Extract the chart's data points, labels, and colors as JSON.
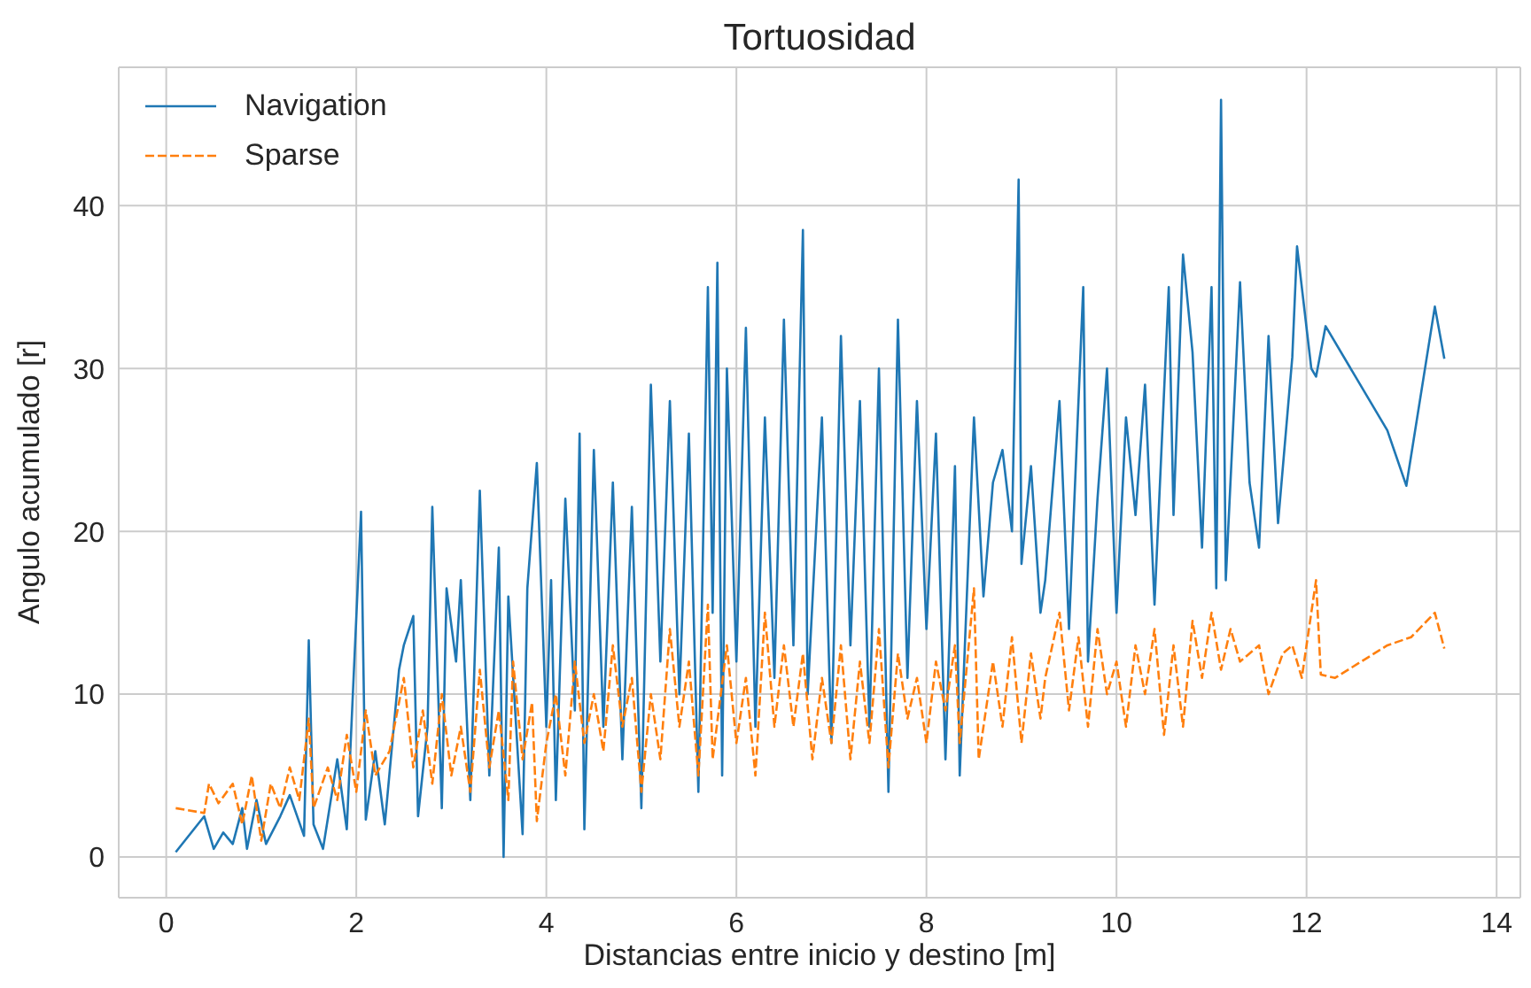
{
  "chart_data": {
    "type": "line",
    "title": "Tortuosidad",
    "xlabel": "Distancias entre inicio y destino [m]",
    "ylabel": "Angulo acumulado [r]",
    "xlim": [
      -0.5,
      14.25
    ],
    "ylim": [
      -2.5,
      48.5
    ],
    "xticks": [
      0,
      2,
      4,
      6,
      8,
      10,
      12,
      14
    ],
    "yticks": [
      0,
      10,
      20,
      30,
      40
    ],
    "grid": true,
    "legend": "top left",
    "marker": "none",
    "series": [
      {
        "name": "Navigation",
        "color": "#1f77b4",
        "line_style": "solid",
        "x": [
          0.1,
          0.4,
          0.5,
          0.6,
          0.7,
          0.8,
          0.85,
          0.95,
          1.05,
          1.2,
          1.3,
          1.45,
          1.5,
          1.55,
          1.65,
          1.8,
          1.9,
          2.05,
          2.1,
          2.2,
          2.3,
          2.45,
          2.5,
          2.6,
          2.65,
          2.75,
          2.8,
          2.9,
          2.95,
          3.05,
          3.1,
          3.2,
          3.3,
          3.4,
          3.5,
          3.55,
          3.6,
          3.75,
          3.8,
          3.9,
          4.0,
          4.05,
          4.1,
          4.2,
          4.3,
          4.35,
          4.4,
          4.5,
          4.6,
          4.7,
          4.8,
          4.9,
          5.0,
          5.1,
          5.2,
          5.3,
          5.4,
          5.5,
          5.6,
          5.7,
          5.75,
          5.8,
          5.85,
          5.9,
          6.0,
          6.1,
          6.2,
          6.3,
          6.4,
          6.5,
          6.6,
          6.7,
          6.75,
          6.9,
          7.0,
          7.1,
          7.2,
          7.3,
          7.4,
          7.5,
          7.6,
          7.7,
          7.8,
          7.9,
          8.0,
          8.1,
          8.2,
          8.3,
          8.35,
          8.5,
          8.6,
          8.7,
          8.8,
          8.9,
          8.97,
          9.0,
          9.1,
          9.2,
          9.25,
          9.4,
          9.5,
          9.65,
          9.7,
          9.8,
          9.9,
          10.0,
          10.1,
          10.2,
          10.3,
          10.4,
          10.55,
          10.6,
          10.7,
          10.8,
          10.9,
          11.0,
          11.05,
          11.1,
          11.15,
          11.3,
          11.4,
          11.5,
          11.6,
          11.7,
          11.85,
          11.9,
          12.05,
          12.1,
          12.2,
          12.85,
          13.05,
          13.35,
          13.45
        ],
        "values": [
          0.3,
          2.5,
          0.5,
          1.5,
          0.8,
          3,
          0.5,
          3.5,
          0.8,
          2.5,
          3.8,
          1.3,
          13.3,
          2,
          0.5,
          6,
          1.7,
          21.2,
          2.3,
          6.5,
          2,
          11.5,
          13,
          14.8,
          2.5,
          8,
          21.5,
          3,
          16.5,
          12,
          17,
          3.5,
          22.5,
          5,
          19,
          0,
          16,
          1.4,
          16.5,
          24.2,
          8,
          17,
          3.5,
          22,
          9,
          26,
          1.7,
          25,
          8,
          23,
          6,
          21.5,
          3,
          29,
          12,
          28,
          10,
          26,
          4,
          35,
          15,
          36.5,
          5,
          30,
          12,
          32.5,
          8,
          27,
          11,
          33,
          13,
          38.5,
          10,
          27,
          7,
          32,
          13,
          28,
          8,
          30,
          4,
          33,
          11,
          28,
          14,
          26,
          6,
          24,
          5,
          27,
          16,
          23,
          25,
          20,
          41.6,
          18,
          24,
          15,
          17,
          28,
          14,
          35,
          12,
          22,
          30,
          15,
          27,
          21,
          29,
          15.5,
          35,
          21,
          37,
          31,
          19,
          35,
          16.5,
          46.5,
          17,
          35.3,
          23,
          19,
          32,
          20.5,
          30.7,
          37.5,
          30,
          29.5,
          32.6,
          26.2,
          22.8,
          33.8,
          30.6
        ]
      },
      {
        "name": "Sparse",
        "color": "#ff7f0e",
        "line_style": "dashed",
        "x": [
          0.1,
          0.4,
          0.45,
          0.55,
          0.7,
          0.8,
          0.9,
          1.0,
          1.1,
          1.2,
          1.3,
          1.4,
          1.5,
          1.55,
          1.7,
          1.8,
          1.9,
          2.0,
          2.1,
          2.2,
          2.35,
          2.5,
          2.6,
          2.7,
          2.8,
          2.9,
          3.0,
          3.1,
          3.2,
          3.3,
          3.4,
          3.5,
          3.6,
          3.65,
          3.75,
          3.85,
          3.9,
          4.0,
          4.1,
          4.2,
          4.3,
          4.4,
          4.5,
          4.6,
          4.7,
          4.8,
          4.9,
          5.0,
          5.1,
          5.2,
          5.3,
          5.4,
          5.5,
          5.6,
          5.7,
          5.75,
          5.9,
          6.0,
          6.1,
          6.2,
          6.3,
          6.4,
          6.5,
          6.6,
          6.7,
          6.8,
          6.9,
          7.0,
          7.1,
          7.2,
          7.3,
          7.4,
          7.5,
          7.6,
          7.7,
          7.8,
          7.9,
          8.0,
          8.1,
          8.2,
          8.3,
          8.35,
          8.5,
          8.55,
          8.7,
          8.8,
          8.9,
          9.0,
          9.1,
          9.2,
          9.25,
          9.4,
          9.5,
          9.6,
          9.7,
          9.8,
          9.9,
          10.0,
          10.1,
          10.2,
          10.3,
          10.4,
          10.5,
          10.6,
          10.7,
          10.8,
          10.9,
          11.0,
          11.1,
          11.2,
          11.3,
          11.5,
          11.6,
          11.75,
          11.85,
          11.95,
          12.1,
          12.15,
          12.3,
          12.85,
          13.1,
          13.35,
          13.45
        ],
        "values": [
          3,
          2.7,
          4.5,
          3.3,
          4.5,
          2,
          5,
          1,
          4.5,
          3,
          5.5,
          3.5,
          8.5,
          3,
          5.5,
          3.5,
          7.5,
          4,
          9,
          5,
          6.5,
          11,
          5.5,
          9,
          4.5,
          10,
          5,
          8,
          4,
          11.5,
          5.5,
          9,
          3.5,
          12,
          6,
          9.5,
          2.2,
          7,
          10,
          5,
          12,
          7,
          10,
          6.5,
          13,
          8,
          11,
          4,
          10,
          6,
          14,
          8,
          12,
          5,
          15.5,
          6,
          13,
          7,
          11,
          5,
          15,
          8,
          13,
          8,
          12.5,
          6,
          11,
          7,
          13,
          6,
          12,
          7,
          14,
          5.5,
          12.5,
          8.5,
          11,
          7,
          12,
          9,
          13,
          7,
          16.5,
          6,
          12,
          8,
          13.5,
          7,
          12.5,
          8.5,
          11,
          15,
          9,
          13.5,
          8,
          14,
          10,
          12,
          8,
          13,
          10,
          14,
          7.5,
          13,
          8,
          14.5,
          11,
          15,
          11.5,
          14,
          12,
          13,
          10,
          12.5,
          13,
          11,
          17,
          11.2,
          11,
          13,
          13.5,
          15,
          12.8
        ]
      }
    ]
  }
}
